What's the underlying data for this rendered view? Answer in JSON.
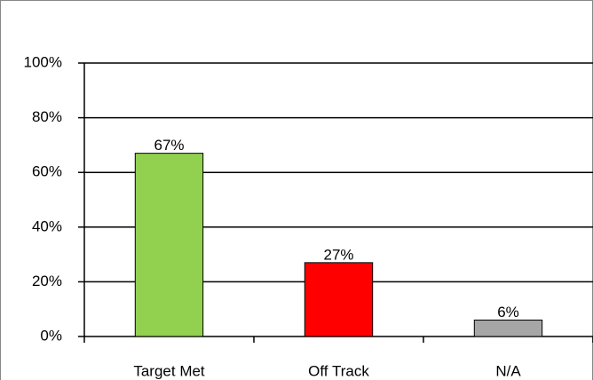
{
  "chart_data": {
    "type": "bar",
    "categories": [
      "Target Met",
      "Off Track",
      "N/A"
    ],
    "values": [
      67,
      27,
      6
    ],
    "value_labels": [
      "67%",
      "27%",
      "6%"
    ],
    "colors": [
      "#92d050",
      "#ff0000",
      "#a6a6a6"
    ],
    "ylim": [
      0,
      100
    ],
    "yticks": [
      {
        "value": 0,
        "label": "0%"
      },
      {
        "value": 20,
        "label": "20%"
      },
      {
        "value": 40,
        "label": "40%"
      },
      {
        "value": 60,
        "label": "60%"
      },
      {
        "value": 80,
        "label": "80%"
      },
      {
        "value": 100,
        "label": "100%"
      }
    ],
    "grid": true
  }
}
